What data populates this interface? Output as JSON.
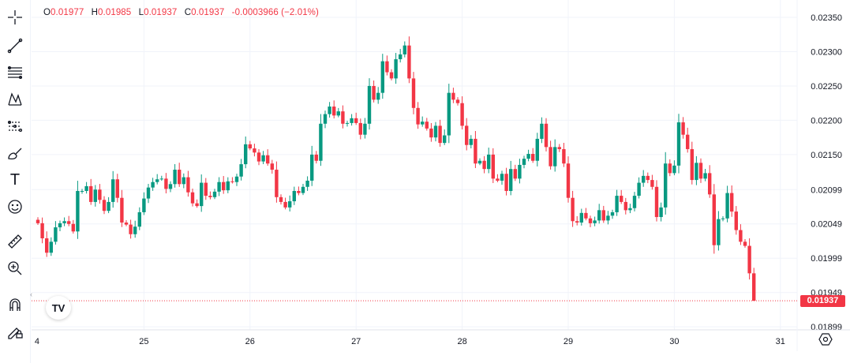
{
  "legend": {
    "open_label": "O",
    "open": "0.01977",
    "high_label": "H",
    "high": "0.01985",
    "low_label": "L",
    "low": "0.01937",
    "close_label": "C",
    "close": "0.01937",
    "change": "-0.0003966 (−2.01%)"
  },
  "toolbar": {
    "icons": [
      "crosshair-icon",
      "trend-line-icon",
      "fib-retracement-icon",
      "pattern-icon",
      "prediction-icon",
      "brush-icon",
      "text-icon",
      "emoji-icon",
      "ruler-icon",
      "zoom-in-icon",
      "magnet-icon",
      "lock-drawings-icon"
    ],
    "text_tool_glyph": "T"
  },
  "logo_text": "TV",
  "current_price_label": "0.01937",
  "colors": {
    "up": "#089981",
    "down": "#f23645",
    "grid": "#f0f3fa",
    "text": "#131722"
  },
  "chart_data": {
    "type": "candlestick",
    "interval": "1h",
    "y_ticks": [
      "0.02350",
      "0.02300",
      "0.02250",
      "0.02200",
      "0.02150",
      "0.02099",
      "0.02049",
      "0.01999",
      "0.01949",
      "0.01899"
    ],
    "x_ticks": [
      "4",
      "25",
      "26",
      "27",
      "28",
      "29",
      "30",
      "31"
    ],
    "x_tick_candle_index": [
      0,
      24,
      48,
      72,
      96,
      120,
      144,
      168
    ],
    "ylim": [
      0.01899,
      0.0235
    ],
    "current_price": 0.01937,
    "first_open": 0.02055,
    "last_candle": {
      "open": 0.01977,
      "high": 0.01985,
      "low": 0.01937,
      "close": 0.01937
    },
    "closes": [
      0.0205,
      0.02028,
      0.02007,
      0.02023,
      0.02044,
      0.0205,
      0.02053,
      0.02049,
      0.02038,
      0.02097,
      0.02097,
      0.02104,
      0.02081,
      0.02099,
      0.02084,
      0.02068,
      0.02081,
      0.02114,
      0.02087,
      0.02051,
      0.02048,
      0.02034,
      0.02045,
      0.02066,
      0.02086,
      0.02102,
      0.0211,
      0.02114,
      0.02115,
      0.021,
      0.02107,
      0.02128,
      0.02107,
      0.02117,
      0.02095,
      0.02079,
      0.02075,
      0.02109,
      0.0209,
      0.02088,
      0.02096,
      0.0211,
      0.02098,
      0.02111,
      0.0211,
      0.02118,
      0.02136,
      0.02165,
      0.02159,
      0.02153,
      0.0214,
      0.02149,
      0.02137,
      0.02128,
      0.02088,
      0.02081,
      0.02073,
      0.02082,
      0.02097,
      0.02094,
      0.02103,
      0.02112,
      0.0215,
      0.02141,
      0.02195,
      0.02209,
      0.0222,
      0.02207,
      0.02213,
      0.02195,
      0.02196,
      0.02203,
      0.02196,
      0.02179,
      0.02195,
      0.0225,
      0.0223,
      0.0224,
      0.02286,
      0.0227,
      0.02261,
      0.02289,
      0.02296,
      0.02309,
      0.02261,
      0.02218,
      0.02194,
      0.02198,
      0.02188,
      0.02175,
      0.02192,
      0.02167,
      0.02178,
      0.0224,
      0.0223,
      0.02225,
      0.02192,
      0.02164,
      0.02173,
      0.02137,
      0.02141,
      0.02129,
      0.0215,
      0.02115,
      0.02112,
      0.02122,
      0.02097,
      0.02129,
      0.02115,
      0.02135,
      0.02144,
      0.02151,
      0.02141,
      0.02173,
      0.02195,
      0.02161,
      0.02133,
      0.02161,
      0.02158,
      0.02137,
      0.02087,
      0.02053,
      0.02051,
      0.02065,
      0.02057,
      0.0205,
      0.02054,
      0.02069,
      0.02054,
      0.02061,
      0.02066,
      0.0209,
      0.02081,
      0.02069,
      0.02072,
      0.0209,
      0.02109,
      0.02119,
      0.02113,
      0.02103,
      0.02059,
      0.02073,
      0.02137,
      0.02123,
      0.02134,
      0.02197,
      0.02179,
      0.02158,
      0.02113,
      0.02138,
      0.02115,
      0.02123,
      0.02092,
      0.02018,
      0.02056,
      0.02057,
      0.02094,
      0.02067,
      0.0204,
      0.02023,
      0.02017,
      0.01977,
      0.01937
    ]
  }
}
